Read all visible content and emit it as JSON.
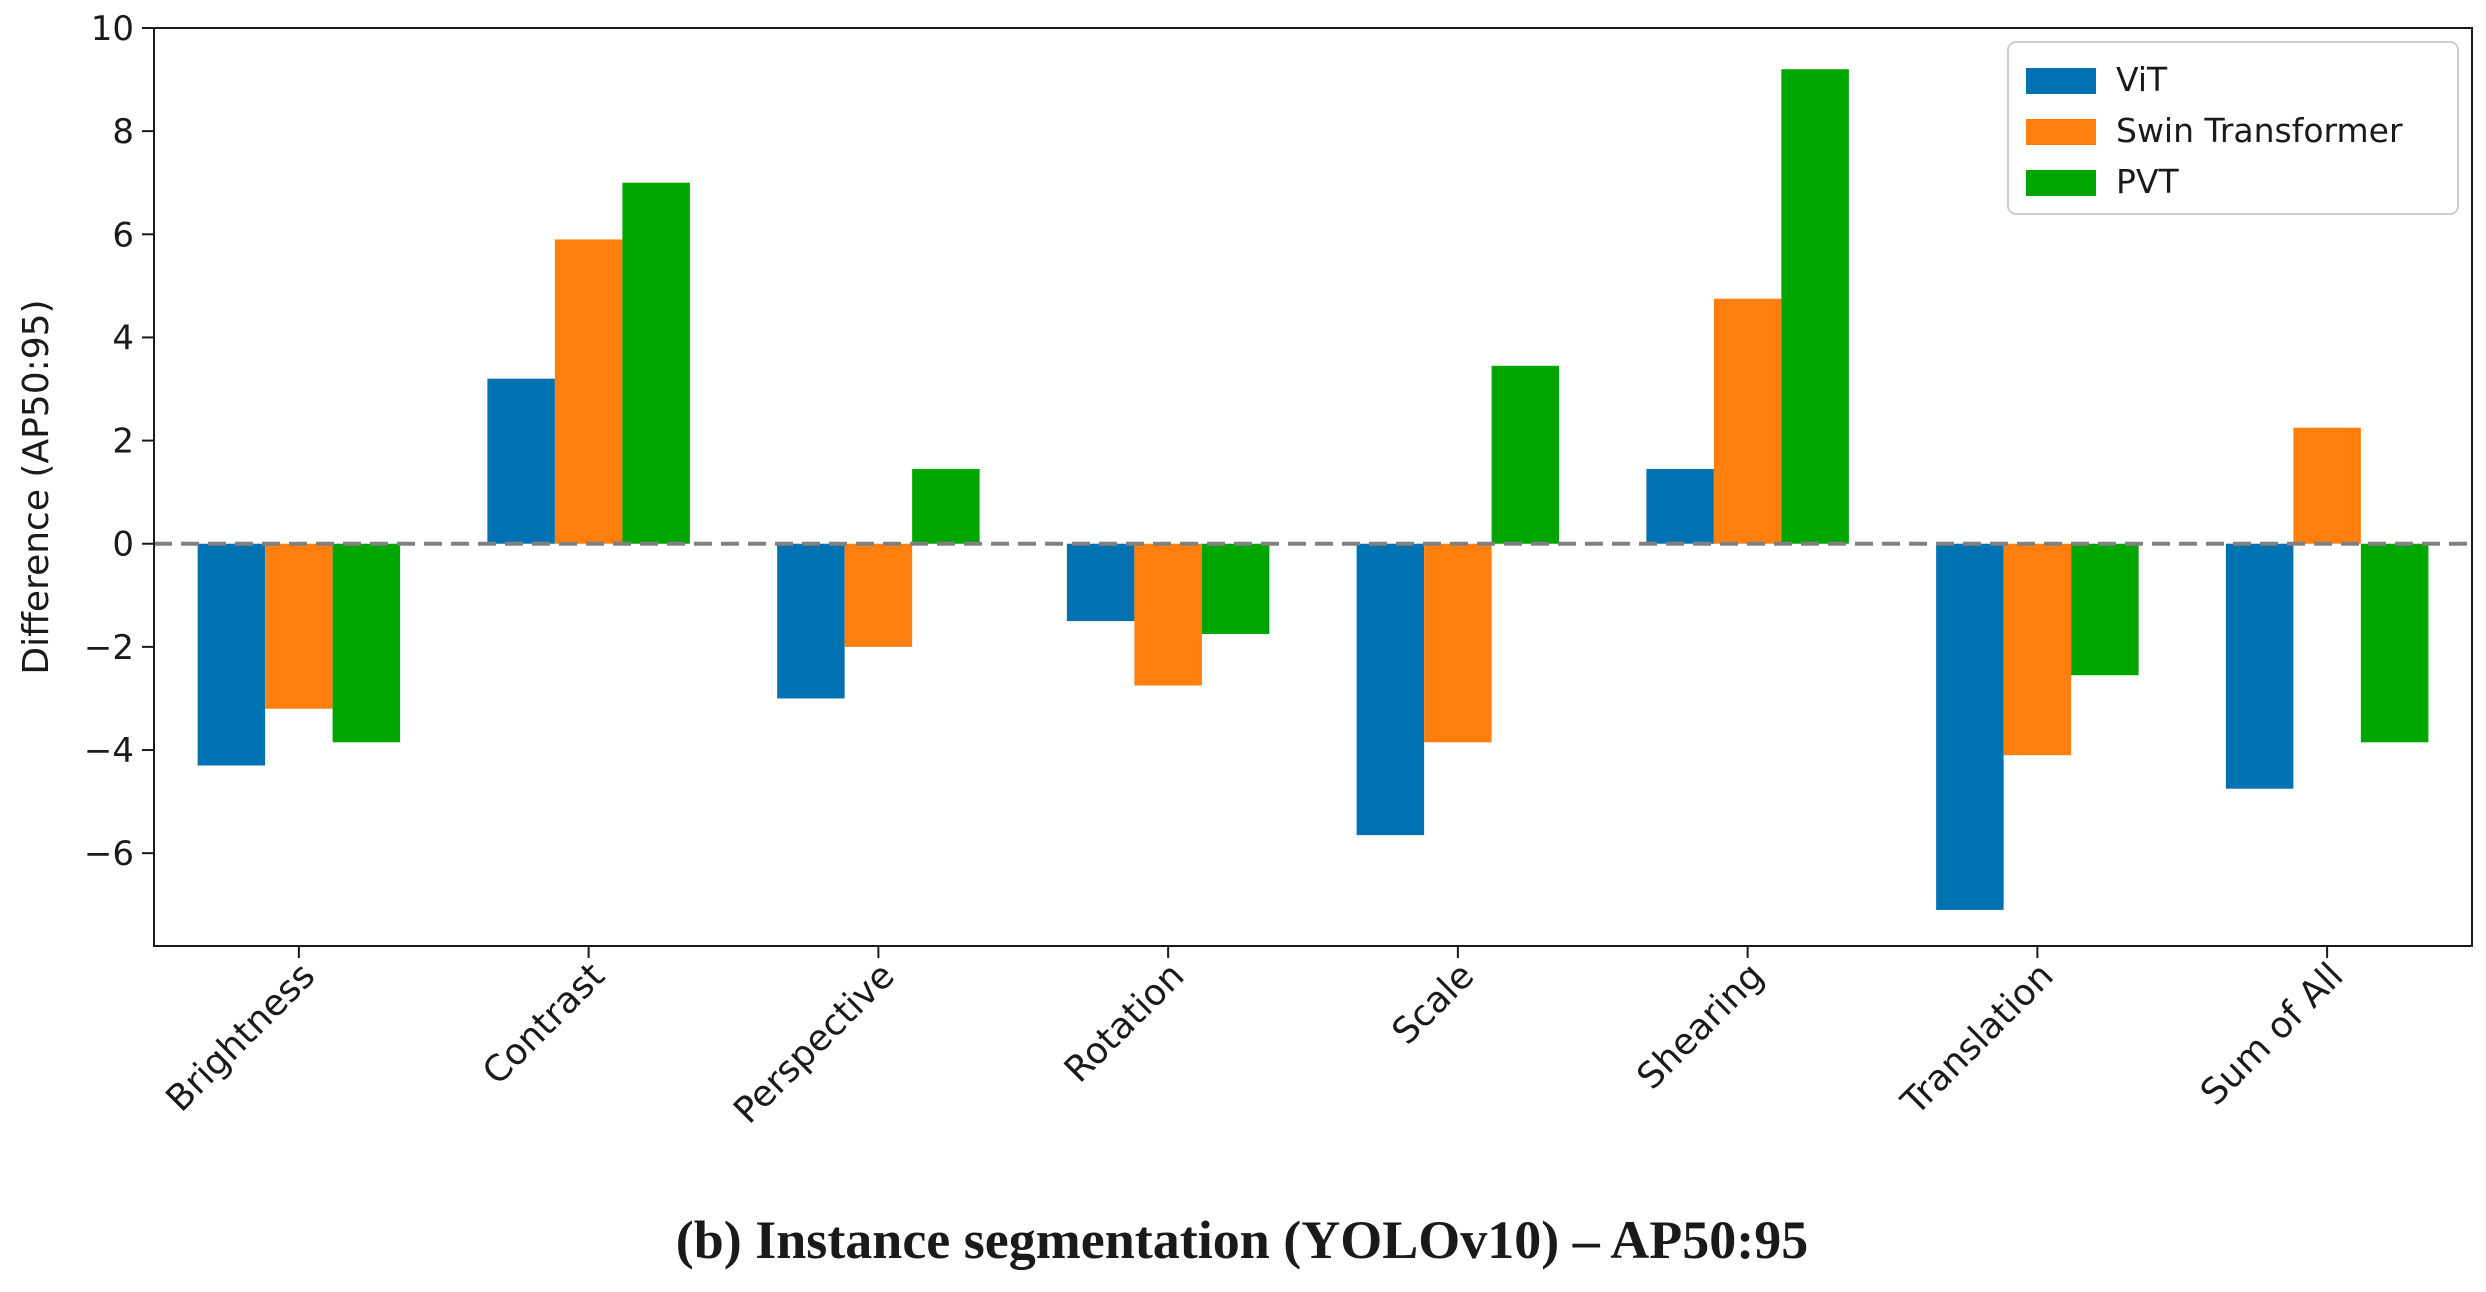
{
  "chart_data": {
    "type": "bar",
    "title": "",
    "caption": "(b) Instance segmentation (YOLOv10) – AP50:95",
    "xlabel": "",
    "ylabel": "Difference (AP50:95)",
    "ylim": [
      -7.8,
      10
    ],
    "yticks": [
      -6,
      -4,
      -2,
      0,
      2,
      4,
      6,
      8,
      10
    ],
    "ytick_labels": [
      "−6",
      "−4",
      "−2",
      "0",
      "2",
      "4",
      "6",
      "8",
      "10"
    ],
    "categories": [
      "Brightness",
      "Contrast",
      "Perspective",
      "Rotation",
      "Scale",
      "Shearing",
      "Translation",
      "Sum of All"
    ],
    "series": [
      {
        "name": "ViT",
        "color": "#0072B2",
        "values": [
          -4.3,
          3.2,
          -3.0,
          -1.5,
          -5.65,
          1.45,
          -7.1,
          -4.75
        ]
      },
      {
        "name": "Swin Transformer",
        "color": "#FF7F0E",
        "values": [
          -3.2,
          5.9,
          -2.0,
          -2.75,
          -3.85,
          4.75,
          -4.1,
          2.25
        ]
      },
      {
        "name": "PVT",
        "color": "#00A600",
        "values": [
          -3.85,
          7.0,
          1.45,
          -1.75,
          3.45,
          9.2,
          -2.55,
          -3.85
        ]
      }
    ],
    "reference_line": {
      "value": 0,
      "style": "dashed",
      "color": "#808080"
    },
    "legend_position": "top-right",
    "grid": false
  }
}
